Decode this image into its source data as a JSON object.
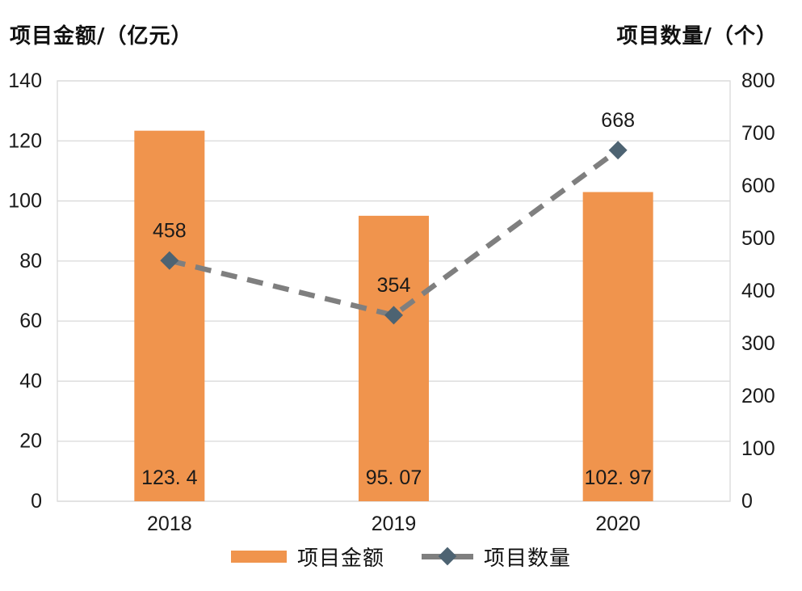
{
  "chart_data": {
    "type": "combo_bar_line",
    "categories": [
      "2018",
      "2019",
      "2020"
    ],
    "series": [
      {
        "name": "项目金额",
        "type": "bar",
        "axis": "left",
        "values": [
          123.4,
          95.07,
          102.97
        ],
        "labels": [
          "123. 4",
          "95. 07",
          "102. 97"
        ]
      },
      {
        "name": "项目数量",
        "type": "line",
        "axis": "right",
        "values": [
          458,
          354,
          668
        ],
        "labels": [
          "458",
          "354",
          "668"
        ]
      }
    ],
    "left_axis": {
      "title": "项目金额/（亿元）",
      "min": 0,
      "max": 140,
      "step": 20,
      "ticks": [
        "0",
        "20",
        "40",
        "60",
        "80",
        "100",
        "120",
        "140"
      ]
    },
    "right_axis": {
      "title": "项目数量/（个）",
      "min": 0,
      "max": 800,
      "step": 100,
      "ticks": [
        "0",
        "100",
        "200",
        "300",
        "400",
        "500",
        "600",
        "700",
        "800"
      ]
    },
    "legend": [
      {
        "label": "项目金额",
        "type": "bar"
      },
      {
        "label": "项目数量",
        "type": "line"
      }
    ],
    "colors": {
      "bar": "#F0944D",
      "line": "#7F7F7F",
      "marker": "#4D6372",
      "grid": "#D9D9D9",
      "text": "#1A1A1A"
    },
    "grid": true,
    "legend_position": "bottom"
  }
}
